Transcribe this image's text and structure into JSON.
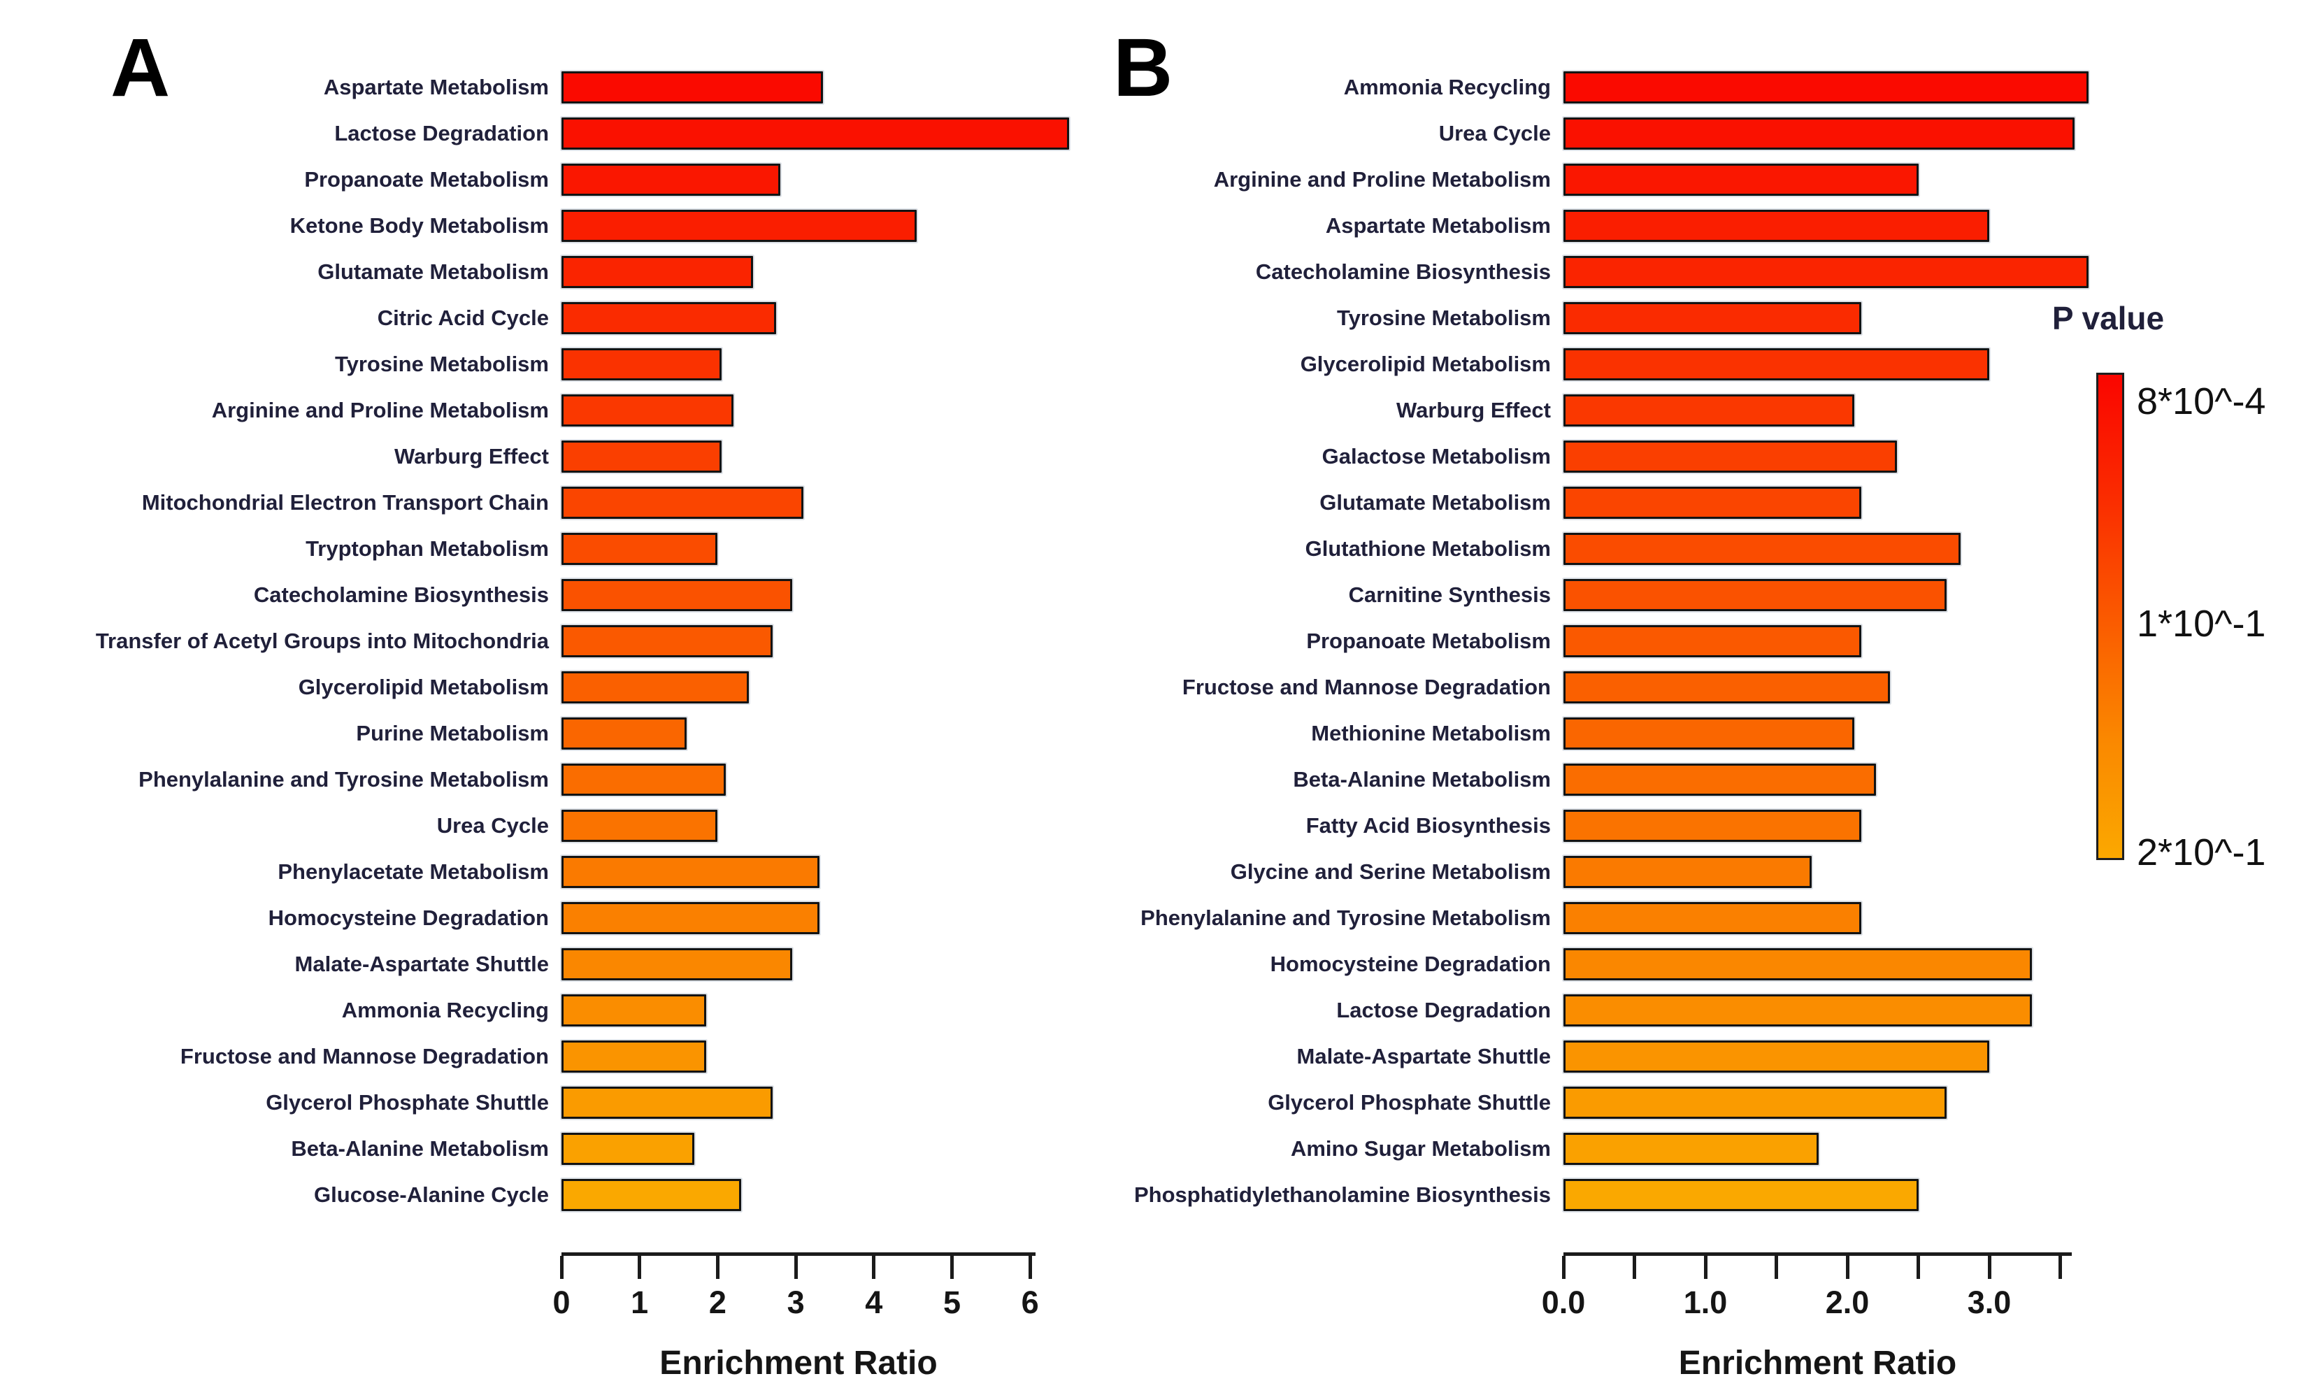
{
  "chart_data": [
    {
      "type": "bar",
      "panel": "A",
      "panel_letter": "A",
      "orientation": "horizontal",
      "xlabel": "Enrichment Ratio",
      "ylabel": "",
      "xlim": [
        0,
        6.07
      ],
      "grid": false,
      "xticks": [
        0,
        1,
        2,
        3,
        4,
        5,
        6
      ],
      "xtick_labels": [
        "0",
        "1",
        "2",
        "3",
        "4",
        "5",
        "6"
      ],
      "categories": [
        "Aspartate Metabolism",
        "Lactose Degradation",
        "Propanoate Metabolism",
        "Ketone Body Metabolism",
        "Glutamate Metabolism",
        "Citric Acid Cycle",
        "Tyrosine Metabolism",
        "Arginine and Proline Metabolism",
        "Warburg Effect",
        "Mitochondrial Electron Transport Chain",
        "Tryptophan Metabolism",
        "Catecholamine Biosynthesis",
        "Transfer of Acetyl Groups into Mitochondria",
        "Glycerolipid Metabolism",
        "Purine Metabolism",
        "Phenylalanine and Tyrosine Metabolism",
        "Urea Cycle",
        "Phenylacetate Metabolism",
        "Homocysteine Degradation",
        "Malate-Aspartate Shuttle",
        "Ammonia Recycling",
        "Fructose and Mannose Degradation",
        "Glycerol Phosphate Shuttle",
        "Beta-Alanine Metabolism",
        "Glucose-Alanine Cycle"
      ],
      "values": [
        3.35,
        6.5,
        2.8,
        4.55,
        2.45,
        2.75,
        2.05,
        2.2,
        2.05,
        3.1,
        2.0,
        2.95,
        2.7,
        2.4,
        1.6,
        2.1,
        2.0,
        3.3,
        3.3,
        2.95,
        1.85,
        1.85,
        2.7,
        1.7,
        2.3
      ],
      "bar_colors": [
        "#FA0A00",
        "#FA1100",
        "#FA1700",
        "#FA1E00",
        "#FA2400",
        "#FA2B00",
        "#FA3200",
        "#FA3800",
        "#FA3F00",
        "#FA4500",
        "#FA4C00",
        "#FA5200",
        "#FA5900",
        "#FA6000",
        "#FA6600",
        "#FA6D00",
        "#FA7300",
        "#FA7A00",
        "#FA8000",
        "#FA8700",
        "#FA8D00",
        "#FA9400",
        "#FA9B00",
        "#FAA100",
        "#FAA800"
      ]
    },
    {
      "type": "bar",
      "panel": "B",
      "panel_letter": "B",
      "orientation": "horizontal",
      "xlabel": "Enrichment Ratio",
      "ylabel": "",
      "xlim": [
        0,
        3.58
      ],
      "grid": false,
      "xticks": [
        0,
        0.5,
        1,
        1.5,
        2,
        2.5,
        3,
        3.5
      ],
      "xtick_labels": [
        "0.0",
        "",
        "1.0",
        "",
        "2.0",
        "",
        "3.0",
        ""
      ],
      "categories": [
        "Ammonia Recycling",
        "Urea Cycle",
        "Arginine and Proline Metabolism",
        "Aspartate Metabolism",
        "Catecholamine Biosynthesis",
        "Tyrosine Metabolism",
        "Glycerolipid Metabolism",
        "Warburg Effect",
        "Galactose Metabolism",
        "Glutamate Metabolism",
        "Glutathione Metabolism",
        "Carnitine Synthesis",
        "Propanoate Metabolism",
        "Fructose and Mannose Degradation",
        "Methionine Metabolism",
        "Beta-Alanine Metabolism",
        "Fatty Acid Biosynthesis",
        "Glycine and Serine Metabolism",
        "Phenylalanine and Tyrosine Metabolism",
        "Homocysteine Degradation",
        "Lactose Degradation",
        "Malate-Aspartate Shuttle",
        "Glycerol Phosphate Shuttle",
        "Amino Sugar Metabolism",
        "Phosphatidylethanolamine Biosynthesis"
      ],
      "values": [
        3.7,
        3.6,
        2.5,
        3.0,
        3.7,
        2.1,
        3.0,
        2.05,
        2.35,
        2.1,
        2.8,
        2.7,
        2.1,
        2.3,
        2.05,
        2.2,
        2.1,
        1.75,
        2.1,
        3.3,
        3.3,
        3.0,
        2.7,
        1.8,
        2.5
      ],
      "bar_colors": [
        "#FA0A00",
        "#FA1100",
        "#FA1700",
        "#FA1E00",
        "#FA2400",
        "#FA2B00",
        "#FA3200",
        "#FA3800",
        "#FA3F00",
        "#FA4500",
        "#FA4C00",
        "#FA5200",
        "#FA5900",
        "#FA6000",
        "#FA6600",
        "#FA6D00",
        "#FA7300",
        "#FA7A00",
        "#FA8000",
        "#FA8700",
        "#FA8D00",
        "#FA9400",
        "#FA9B00",
        "#FAA100",
        "#FAA800"
      ]
    }
  ],
  "legend": {
    "title": "P value",
    "labels": [
      "8*10^-4",
      "1*10^-1",
      "2*10^-1"
    ],
    "gradient_stops": [
      "#FA0500",
      "#FA2B00",
      "#FA5900",
      "#FA8700",
      "#FBA800"
    ]
  }
}
